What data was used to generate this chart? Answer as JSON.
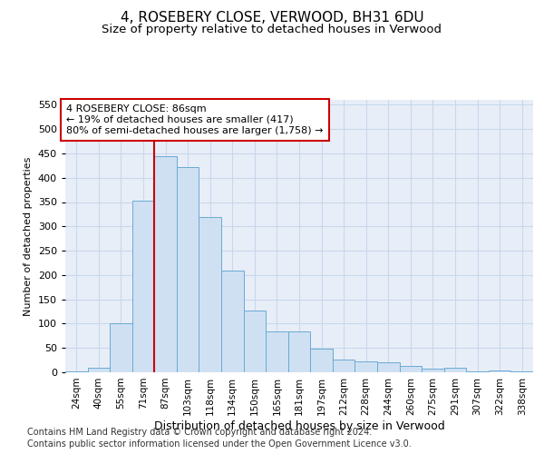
{
  "title1": "4, ROSEBERY CLOSE, VERWOOD, BH31 6DU",
  "title2": "Size of property relative to detached houses in Verwood",
  "xlabel": "Distribution of detached houses by size in Verwood",
  "ylabel": "Number of detached properties",
  "categories": [
    "24sqm",
    "40sqm",
    "55sqm",
    "71sqm",
    "87sqm",
    "103sqm",
    "118sqm",
    "134sqm",
    "150sqm",
    "165sqm",
    "181sqm",
    "197sqm",
    "212sqm",
    "228sqm",
    "244sqm",
    "260sqm",
    "275sqm",
    "291sqm",
    "307sqm",
    "322sqm",
    "338sqm"
  ],
  "values": [
    2,
    10,
    101,
    353,
    445,
    421,
    320,
    210,
    127,
    84,
    84,
    48,
    27,
    22,
    20,
    14,
    8,
    10,
    2,
    4,
    1
  ],
  "bar_color": "#cfe0f3",
  "bar_edge_color": "#6aabd2",
  "red_line_x": 3.5,
  "annotation_text": "4 ROSEBERY CLOSE: 86sqm\n← 19% of detached houses are smaller (417)\n80% of semi-detached houses are larger (1,758) →",
  "annotation_box_color": "#ffffff",
  "annotation_box_edge": "#cc0000",
  "red_line_color": "#cc0000",
  "footer1": "Contains HM Land Registry data © Crown copyright and database right 2024.",
  "footer2": "Contains public sector information licensed under the Open Government Licence v3.0.",
  "ylim": [
    0,
    560
  ],
  "yticks": [
    0,
    50,
    100,
    150,
    200,
    250,
    300,
    350,
    400,
    450,
    500,
    550
  ],
  "title1_fontsize": 11,
  "title2_fontsize": 9.5,
  "xlabel_fontsize": 9,
  "ylabel_fontsize": 8,
  "tick_fontsize": 8,
  "xtick_fontsize": 7.5,
  "footer_fontsize": 7,
  "grid_color": "#c8d8ec",
  "background_color": "#e8eef8"
}
